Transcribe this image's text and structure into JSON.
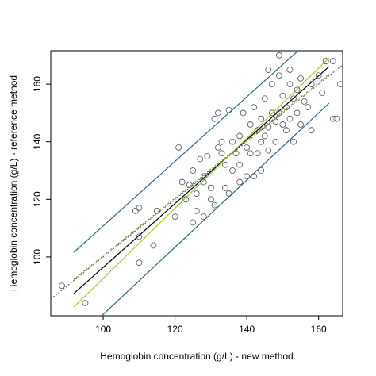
{
  "chart_data": {
    "type": "scatter",
    "x_label": "Hemoglobin concentration (g/L) - new method",
    "y_label": "Hemoglobin concentration (g/L) - reference method",
    "xlim": [
      85.4,
      166.7
    ],
    "ylim": [
      79.6,
      171.6
    ],
    "xticks": [
      100,
      120,
      140,
      160
    ],
    "yticks": [
      100,
      120,
      140,
      160
    ],
    "point_color": "#555555",
    "x": [
      88.5,
      95,
      109,
      110,
      110,
      110,
      114,
      115,
      121,
      122,
      123,
      124,
      125,
      126,
      126,
      127,
      128,
      128,
      129,
      130,
      130,
      131,
      131,
      132,
      133,
      133,
      134,
      134,
      135,
      135,
      136,
      136,
      137,
      138,
      138,
      139,
      140,
      140,
      141,
      141,
      142,
      142,
      143,
      143,
      144,
      144,
      145,
      145,
      146,
      146,
      147,
      147,
      148,
      148,
      149,
      149,
      150,
      150,
      151,
      151,
      152,
      152,
      153,
      153,
      154,
      154,
      155,
      155,
      156,
      157,
      158,
      158,
      160,
      161,
      162,
      164,
      164,
      165,
      166,
      146,
      138,
      132,
      149,
      152,
      144,
      128,
      125,
      120
    ],
    "y": [
      90,
      84,
      116,
      117,
      107,
      98,
      104,
      116,
      138,
      126,
      120,
      125,
      130,
      122,
      116,
      134,
      128,
      114,
      135,
      124,
      120,
      118,
      148,
      138,
      136,
      140,
      132,
      124,
      122,
      151,
      140,
      130,
      136,
      142,
      132,
      150,
      138,
      128,
      146,
      136,
      152,
      128,
      144,
      136,
      148,
      140,
      155,
      142,
      145,
      137,
      150,
      160,
      147,
      140,
      163,
      150,
      156,
      146,
      152,
      144,
      160,
      148,
      155,
      140,
      158,
      150,
      162,
      146,
      154,
      152,
      144,
      160,
      163,
      157,
      168,
      168,
      148,
      148,
      160,
      165,
      126,
      150,
      170,
      165,
      130,
      126,
      112,
      114
    ],
    "lines": [
      {
        "color": "#666666",
        "style": "dotted",
        "x": [
          85.4,
          166.7
        ],
        "y": [
          85.4,
          166.7
        ]
      },
      {
        "color": "#000000",
        "style": "solid",
        "x": [
          91.8,
          162.9
        ],
        "y": [
          87.3,
          166.1
        ]
      },
      {
        "color": "#9acd32",
        "style": "solid",
        "x": [
          91.8,
          162.9
        ],
        "y": [
          82.6,
          169.1
        ]
      },
      {
        "color": "#6b8e23",
        "style": "dotted",
        "x": [
          91.8,
          162.9
        ],
        "y": [
          92.2,
          163.4
        ]
      },
      {
        "color": "#2f6a8f",
        "style": "solid",
        "x": [
          91.8,
          154.3
        ],
        "y": [
          101.6,
          171.6
        ]
      },
      {
        "color": "#2f6a8f",
        "style": "solid",
        "x": [
          99.6,
          162.9
        ],
        "y": [
          79.6,
          153.4
        ]
      }
    ]
  }
}
